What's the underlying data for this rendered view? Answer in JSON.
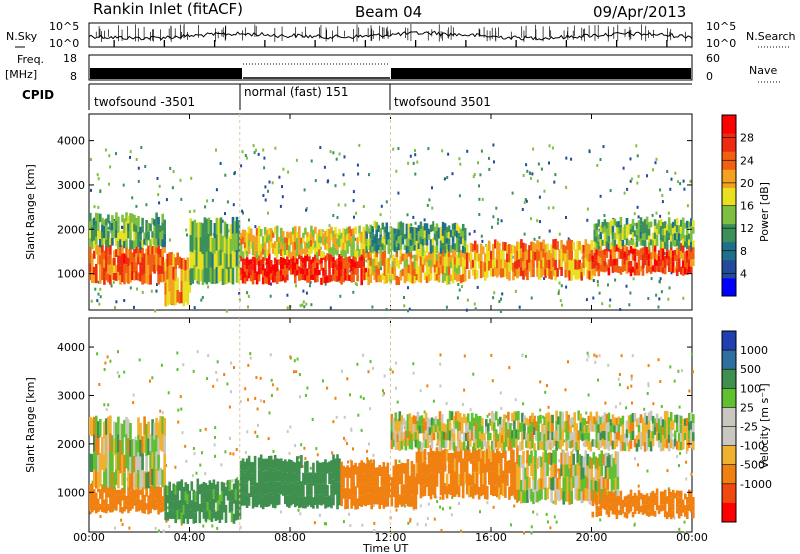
{
  "title": {
    "radar": "Rankin Inlet (fitACF)",
    "beam": "Beam 04",
    "date": "09/Apr/2013"
  },
  "noise_panel": {
    "left_label": "N.Sky",
    "right_label": "N.Search",
    "left_ticks": [
      "10^5",
      "10^0"
    ],
    "right_ticks": [
      "10^5",
      "10^0"
    ]
  },
  "freq_panel": {
    "left_label_1": "Freq.",
    "left_label_2": "[MHz]",
    "right_label": "Nave",
    "left_ticks": [
      "18",
      "8"
    ],
    "right_ticks": [
      "60",
      "0"
    ]
  },
  "cpid": {
    "label": "CPID",
    "segments": [
      {
        "name": "twofsound -3501",
        "start_hour": 0,
        "end_hour": 6
      },
      {
        "name": "normal (fast) 151",
        "start_hour": 6,
        "end_hour": 12
      },
      {
        "name": "twofsound 3501",
        "start_hour": 12,
        "end_hour": 24
      }
    ]
  },
  "x_axis": {
    "label": "Time UT",
    "ticks": [
      "00:00",
      "04:00",
      "08:00",
      "12:00",
      "16:00",
      "20:00",
      "00:00"
    ]
  },
  "colors": {
    "power_scale": [
      "#0000ff",
      "#234b9b",
      "#1f6f8a",
      "#3b8f5a",
      "#7fbf3f",
      "#e8e020",
      "#f4a020",
      "#f06010",
      "#ee2a10",
      "#ff0000"
    ],
    "velocity_scale": [
      "#2040b0",
      "#2f6fa0",
      "#3f8f4f",
      "#60c030",
      "#c8c8c0",
      "#c8c8c0",
      "#f0b030",
      "#f08010",
      "#f04810",
      "#ff0000"
    ]
  },
  "chart_data": [
    {
      "type": "heatmap",
      "name": "power",
      "ylabel": "Slant Range [km]",
      "xlabel": "Time UT",
      "xlim": [
        0,
        24
      ],
      "ylim": [
        180,
        4600
      ],
      "y_ticks": [
        1000,
        2000,
        3000,
        4000
      ],
      "colorbar": {
        "label": "Power [dB]",
        "ticks": [
          "4",
          "8",
          "12",
          "16",
          "20",
          "24",
          "28"
        ],
        "range": [
          0,
          32
        ]
      },
      "bands": [
        {
          "start_hour": 0,
          "end_hour": 3,
          "range_km": [
            800,
            1600
          ],
          "value": 24
        },
        {
          "start_hour": 0,
          "end_hour": 3,
          "range_km": [
            1600,
            2300
          ],
          "value": 12
        },
        {
          "start_hour": 3,
          "end_hour": 4,
          "range_km": [
            300,
            1400
          ],
          "value": 22
        },
        {
          "start_hour": 4,
          "end_hour": 6,
          "range_km": [
            800,
            2200
          ],
          "value": 14
        },
        {
          "start_hour": 6,
          "end_hour": 11,
          "range_km": [
            800,
            1400
          ],
          "value": 28
        },
        {
          "start_hour": 6,
          "end_hour": 11,
          "range_km": [
            1400,
            2000
          ],
          "value": 18
        },
        {
          "start_hour": 11,
          "end_hour": 15,
          "range_km": [
            800,
            1500
          ],
          "value": 20
        },
        {
          "start_hour": 11,
          "end_hour": 15,
          "range_km": [
            1500,
            2100
          ],
          "value": 12
        },
        {
          "start_hour": 15,
          "end_hour": 20,
          "range_km": [
            900,
            1700
          ],
          "value": 22
        },
        {
          "start_hour": 20,
          "end_hour": 24,
          "range_km": [
            1000,
            1600
          ],
          "value": 26
        },
        {
          "start_hour": 20,
          "end_hour": 24,
          "range_km": [
            1600,
            2200
          ],
          "value": 14
        }
      ]
    },
    {
      "type": "heatmap",
      "name": "velocity",
      "ylabel": "Slant Range [km]",
      "xlabel": "Time UT",
      "xlim": [
        0,
        24
      ],
      "ylim": [
        180,
        4600
      ],
      "y_ticks": [
        1000,
        2000,
        3000,
        4000
      ],
      "colorbar": {
        "label": "Velocity [m s⁻¹]",
        "ticks": [
          "1000",
          "500",
          "100",
          "25",
          "-25",
          "-100",
          "-500",
          "-1000"
        ]
      },
      "bands": [
        {
          "start_hour": 0,
          "end_hour": 3,
          "range_km": [
            600,
            1100
          ],
          "value": -300
        },
        {
          "start_hour": 0,
          "end_hour": 3,
          "range_km": [
            1100,
            2500
          ],
          "value": 0
        },
        {
          "start_hour": 3,
          "end_hour": 6,
          "range_km": [
            400,
            1200
          ],
          "value": 200
        },
        {
          "start_hour": 6,
          "end_hour": 10,
          "range_km": [
            700,
            1700
          ],
          "value": 300
        },
        {
          "start_hour": 10,
          "end_hour": 13,
          "range_km": [
            700,
            1600
          ],
          "value": -300
        },
        {
          "start_hour": 13,
          "end_hour": 17,
          "range_km": [
            900,
            1900
          ],
          "value": -200
        },
        {
          "start_hour": 12,
          "end_hour": 24,
          "range_km": [
            1900,
            2600
          ],
          "value": 0
        },
        {
          "start_hour": 17,
          "end_hour": 21,
          "range_km": [
            800,
            1800
          ],
          "value": 0
        },
        {
          "start_hour": 20,
          "end_hour": 24,
          "range_km": [
            500,
            1000
          ],
          "value": -300
        }
      ]
    }
  ]
}
